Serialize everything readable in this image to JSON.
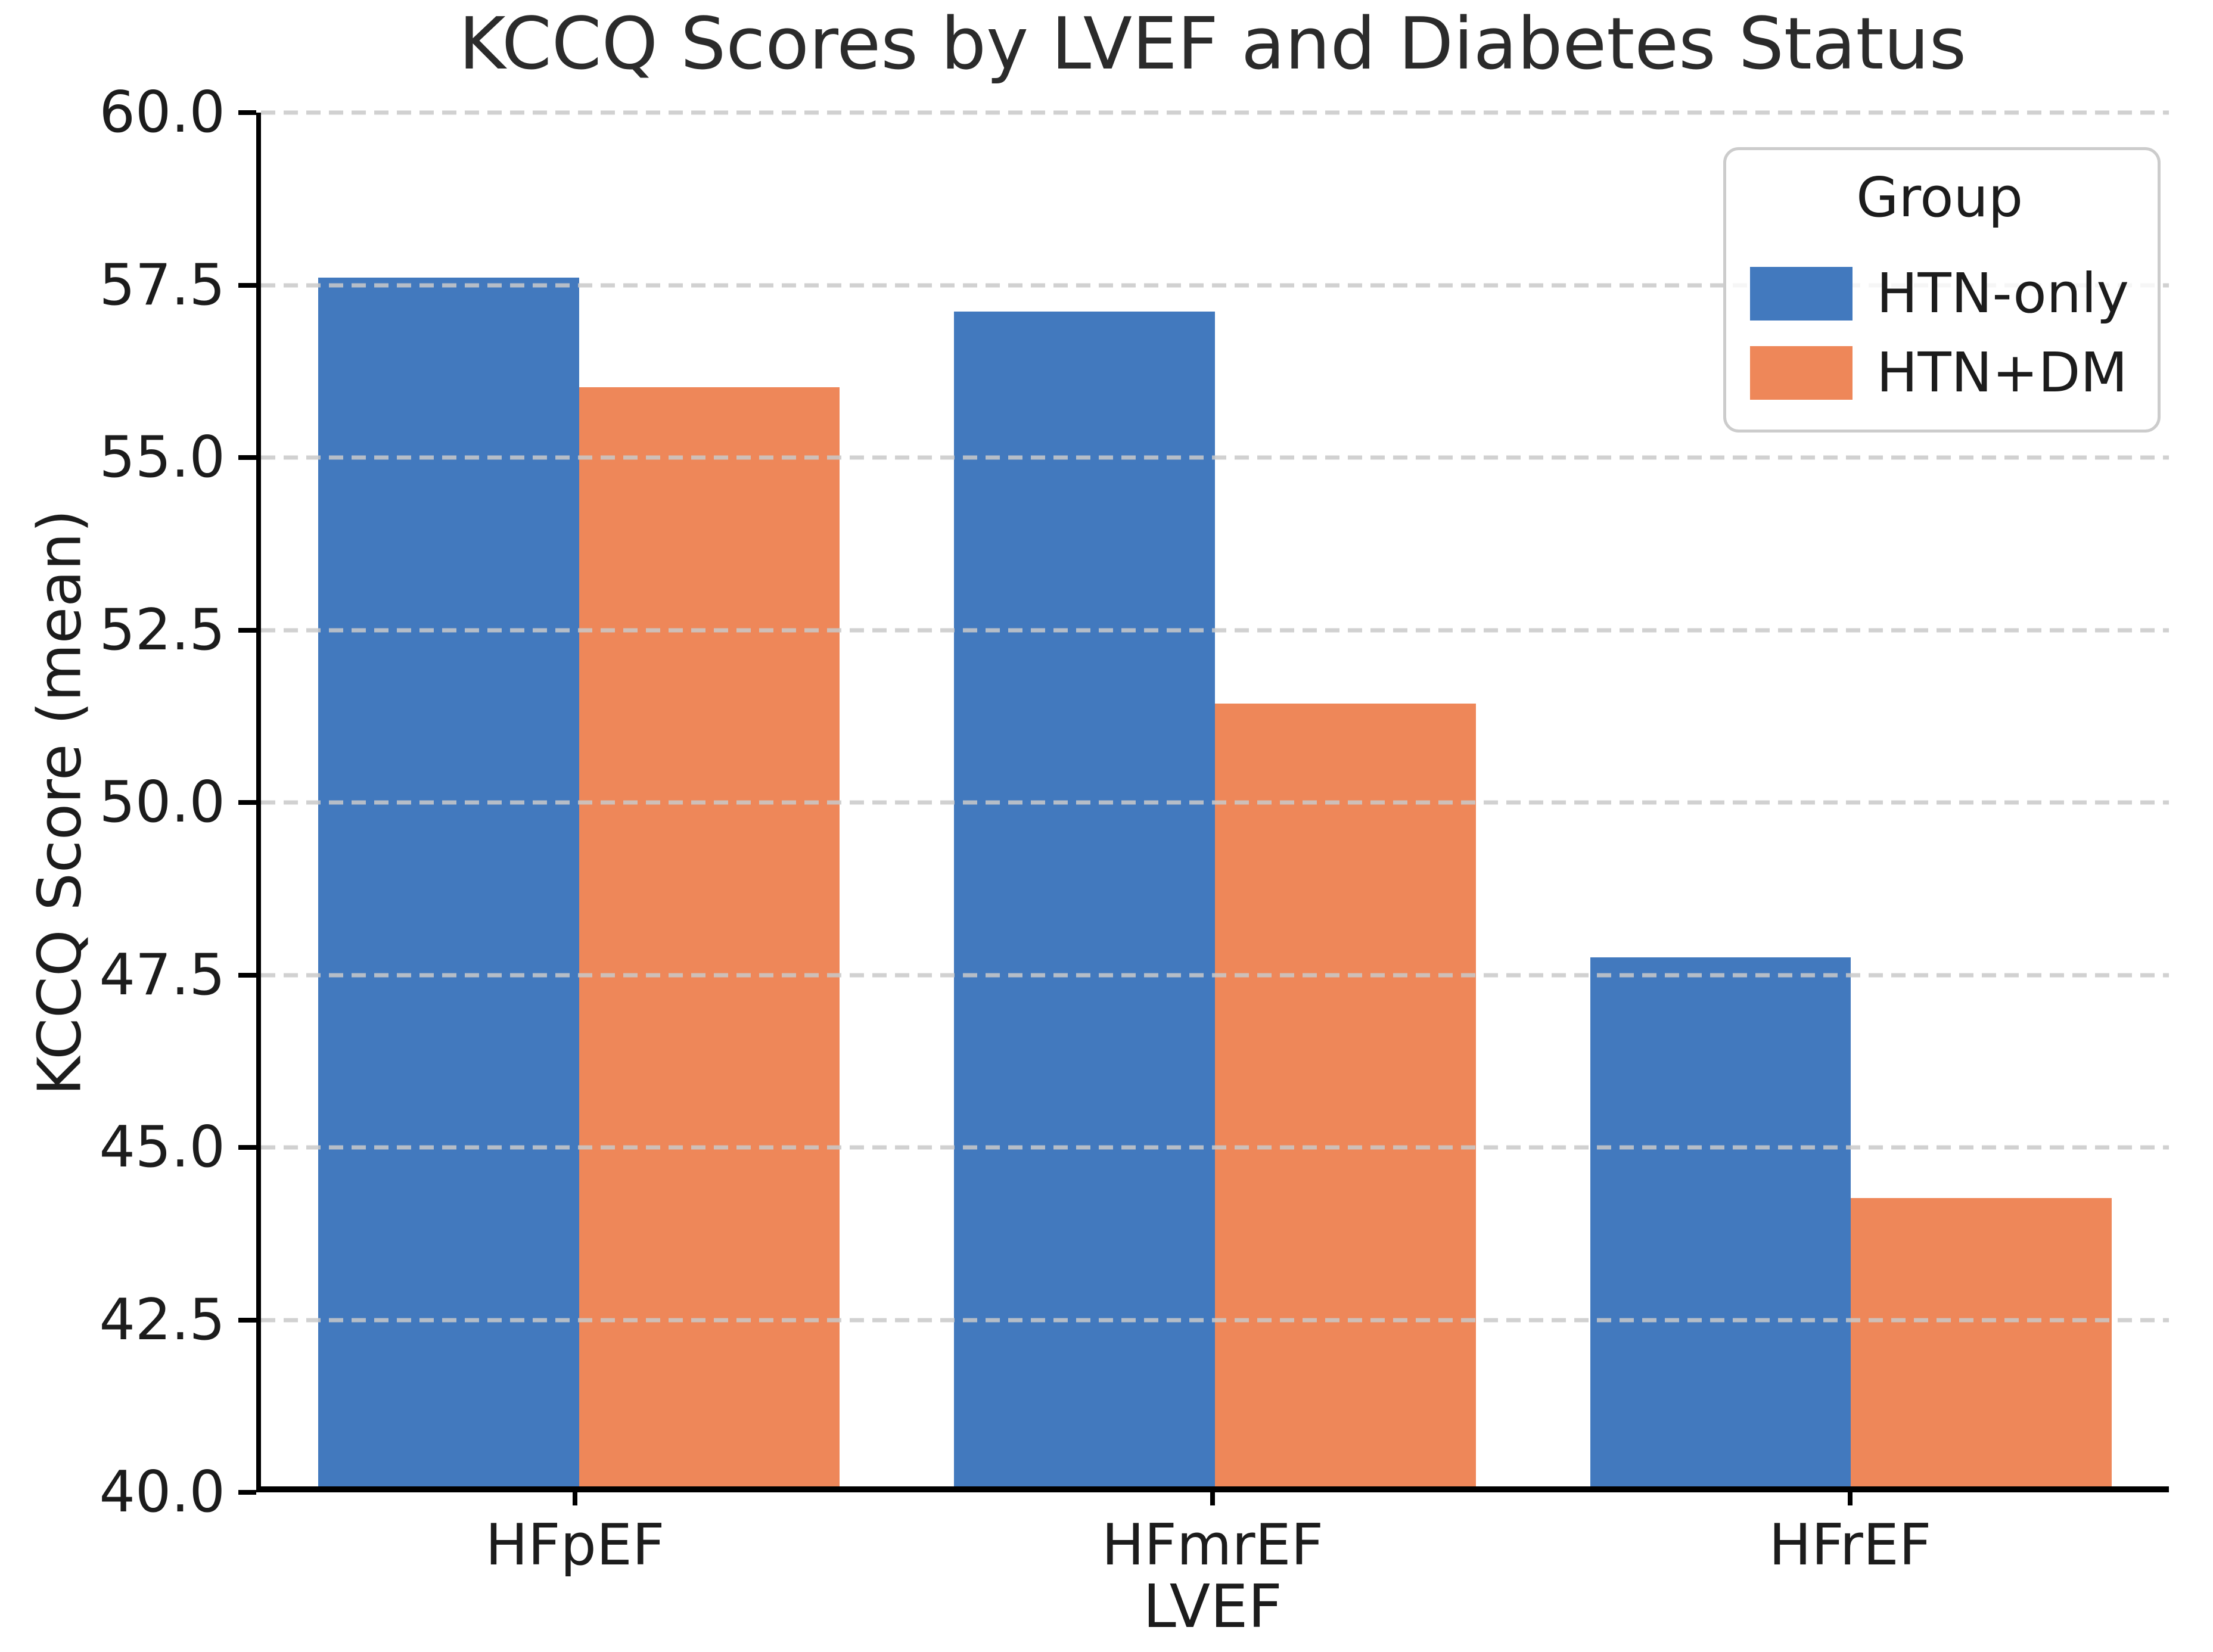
{
  "figure": {
    "background": "#ffffff",
    "text_color": "#1c1c1c",
    "grid_color": "#c9c9c9",
    "spine_color": "#000000"
  },
  "chart_data": {
    "type": "bar",
    "title": "KCCQ Scores by LVEF and Diabetes Status",
    "xlabel": "LVEF",
    "ylabel": "KCCQ Score (mean)",
    "categories": [
      "HFpEF",
      "HFmrEF",
      "HFrEF"
    ],
    "series": [
      {
        "name": "HTN-only",
        "color": "#4279BE",
        "values": [
          57.6,
          57.1,
          47.7
        ]
      },
      {
        "name": "HTN+DM",
        "color": "#EE8759",
        "values": [
          56.0,
          51.4,
          44.2
        ]
      }
    ],
    "ylim": [
      40.0,
      60.0
    ],
    "yticks": [
      40.0,
      42.5,
      45.0,
      47.5,
      50.0,
      52.5,
      55.0,
      57.5,
      60.0
    ],
    "ytick_labels": [
      "40.0",
      "42.5",
      "45.0",
      "47.5",
      "50.0",
      "52.5",
      "55.0",
      "57.5",
      "60.0"
    ],
    "grid": "horizontal-dashed",
    "legend": {
      "title": "Group",
      "position": "upper right",
      "entries": [
        "HTN-only",
        "HTN+DM"
      ]
    }
  }
}
